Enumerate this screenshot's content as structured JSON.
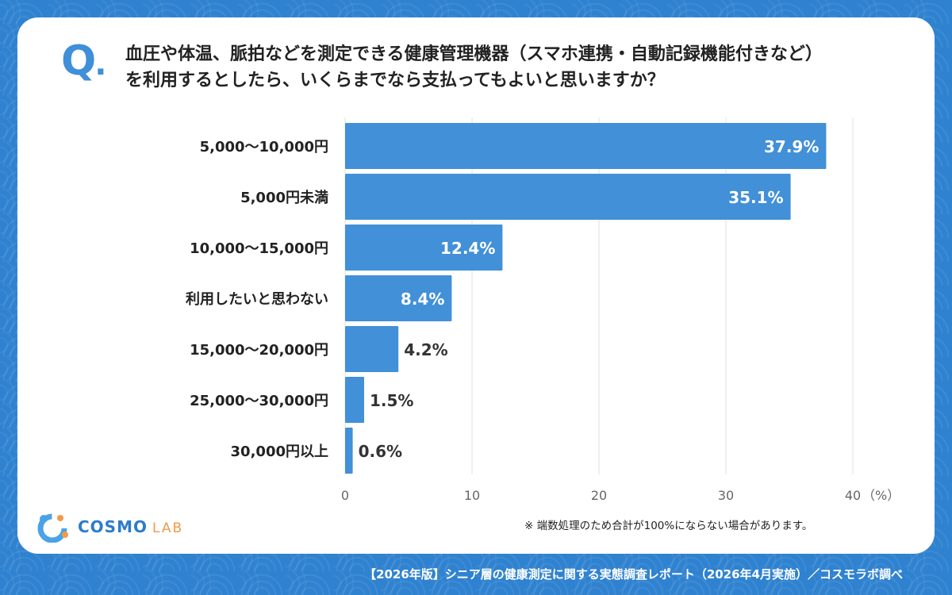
{
  "question": {
    "mark": "Q",
    "line1": "血圧や体温、脈拍などを測定できる健康管理機器（スマホ連携・自動記録機能付きなど）",
    "line2": "を利用するとしたら、いくらまでなら支払ってもよいと思いますか？"
  },
  "chart_data": {
    "type": "bar",
    "orientation": "horizontal",
    "categories": [
      "5,000〜10,000円",
      "5,000円未満",
      "10,000〜15,000円",
      "利用したいと思わない",
      "15,000〜20,000円",
      "25,000〜30,000円",
      "30,000円以上"
    ],
    "values": [
      37.9,
      35.1,
      12.4,
      8.4,
      4.2,
      1.5,
      0.6
    ],
    "value_labels": [
      "37.9%",
      "35.1%",
      "12.4%",
      "8.4%",
      "4.2%",
      "1.5%",
      "0.6%"
    ],
    "xlim": [
      0,
      40
    ],
    "xticks": [
      0,
      10,
      20,
      30,
      40
    ],
    "xunit": "（%）",
    "grid": true,
    "bar_color": "#4190d8"
  },
  "note": "※ 端数処理のため合計が100%にならない場合があります。",
  "logo": {
    "name": "COSMO",
    "sub": "LAB"
  },
  "footer": "【2026年版】シニア層の健康測定に関する実態調査レポート（2026年4月実施）／コスモラボ調べ"
}
